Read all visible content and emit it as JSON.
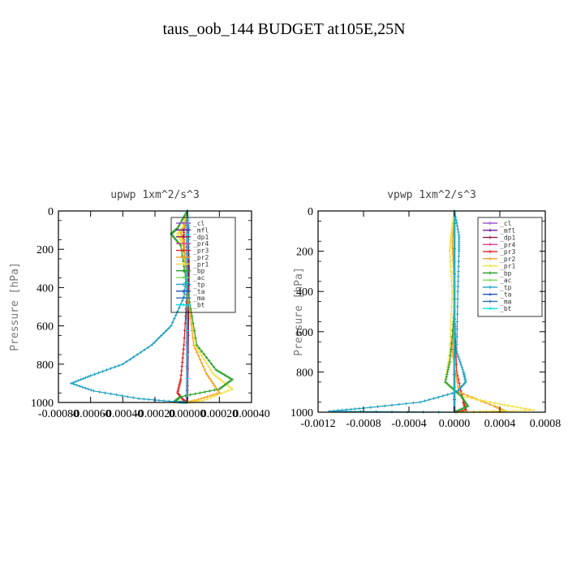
{
  "figure": {
    "title": "taus_oob_144  BUDGET at105E,25N"
  },
  "chart_data": [
    {
      "type": "line",
      "title": "upwp   1xm^2/s^3",
      "ylabel": "Pressure [hPa]",
      "xlabel": "",
      "xlim": [
        -0.0008,
        0.0004
      ],
      "ylim": [
        1000,
        0
      ],
      "y_inverted": true,
      "x_ticks": [
        -0.0008,
        -0.0006,
        -0.0004,
        -0.0002,
        0.0,
        0.0002,
        0.0004
      ],
      "x_tick_labels": [
        "-0.00080",
        "-0.00060",
        "-0.00040",
        "-0.00020",
        "0.00000",
        "0.00020",
        "0.00040"
      ],
      "y_ticks": [
        0,
        200,
        400,
        600,
        800,
        1000
      ],
      "y_tick_labels": [
        "0",
        "200",
        "400",
        "600",
        "800",
        "1000"
      ],
      "legend_position": "top-right",
      "series": [
        {
          "name": "_cl",
          "color": "#9b59d0",
          "points": [
            [
              0,
              0
            ],
            [
              0,
              500
            ],
            [
              0,
              1000
            ]
          ]
        },
        {
          "name": "_mfl",
          "color": "#6a1b9a",
          "points": [
            [
              0,
              0
            ],
            [
              0,
              500
            ],
            [
              0,
              1000
            ]
          ]
        },
        {
          "name": "_dp1",
          "color": "#8b1a4a",
          "points": [
            [
              0,
              0
            ],
            [
              1e-05,
              300
            ],
            [
              0,
              1000
            ]
          ]
        },
        {
          "name": "_pr4",
          "color": "#e0408a",
          "points": [
            [
              0,
              0
            ],
            [
              0,
              1000
            ]
          ]
        },
        {
          "name": "_pr3",
          "color": "#e02020",
          "points": [
            [
              0,
              0
            ],
            [
              -2e-05,
              100
            ],
            [
              -2e-05,
              200
            ],
            [
              0,
              400
            ],
            [
              -2e-05,
              700
            ],
            [
              -4e-05,
              880
            ],
            [
              -6e-05,
              950
            ],
            [
              -2e-05,
              990
            ],
            [
              0,
              1000
            ]
          ]
        },
        {
          "name": "_pr2",
          "color": "#f4a020",
          "points": [
            [
              0,
              0
            ],
            [
              -2e-05,
              80
            ],
            [
              -4e-05,
              110
            ],
            [
              -2e-05,
              160
            ],
            [
              0,
              400
            ],
            [
              4e-05,
              700
            ],
            [
              0.00012,
              850
            ],
            [
              0.0002,
              950
            ],
            [
              5e-05,
              990
            ],
            [
              0,
              1000
            ]
          ]
        },
        {
          "name": "_pr1",
          "color": "#f0e040",
          "points": [
            [
              0,
              0
            ],
            [
              -3e-05,
              90
            ],
            [
              -6e-05,
              120
            ],
            [
              -3e-05,
              170
            ],
            [
              0,
              400
            ],
            [
              5e-05,
              700
            ],
            [
              0.00016,
              850
            ],
            [
              0.00028,
              930
            ],
            [
              0.0001,
              990
            ],
            [
              0,
              1000
            ]
          ]
        },
        {
          "name": "_bp",
          "color": "#2ca02c",
          "points": [
            [
              0,
              0
            ],
            [
              -6e-05,
              90
            ],
            [
              -0.0001,
              120
            ],
            [
              -4e-05,
              180
            ],
            [
              0,
              400
            ],
            [
              6e-05,
              700
            ],
            [
              0.00018,
              830
            ],
            [
              0.00028,
              880
            ],
            [
              0.0002,
              930
            ],
            [
              -4e-05,
              970
            ],
            [
              -8e-05,
              995
            ],
            [
              0,
              1000
            ]
          ]
        },
        {
          "name": "_ac",
          "color": "#7ed957",
          "points": [
            [
              0,
              0
            ],
            [
              0,
              1000
            ]
          ]
        },
        {
          "name": "_tp",
          "color": "#1f9fbf",
          "points": [
            [
              0,
              0
            ],
            [
              1e-05,
              100
            ],
            [
              0,
              300
            ],
            [
              -2e-05,
              450
            ],
            [
              -0.0001,
              600
            ],
            [
              -0.00022,
              700
            ],
            [
              -0.0004,
              800
            ],
            [
              -0.0006,
              860
            ],
            [
              -0.00072,
              900
            ],
            [
              -0.00058,
              940
            ],
            [
              -0.0003,
              980
            ],
            [
              -5e-05,
              998
            ],
            [
              0,
              1000
            ]
          ]
        },
        {
          "name": "_ta",
          "color": "#1f4fbf",
          "points": [
            [
              0,
              0
            ],
            [
              0,
              1000
            ]
          ]
        },
        {
          "name": "_ma",
          "color": "#2a6fb5",
          "points": [
            [
              0,
              0
            ],
            [
              0,
              1000
            ]
          ]
        },
        {
          "name": "_bt",
          "color": "#00e0e0",
          "points": [
            [
              0,
              0
            ],
            [
              0,
              1000
            ]
          ]
        }
      ]
    },
    {
      "type": "line",
      "title": "vpwp   1xm^2/s^3",
      "ylabel": "Pressure [hPa]",
      "xlabel": "",
      "xlim": [
        -0.0012,
        0.0008
      ],
      "ylim": [
        1000,
        0
      ],
      "y_inverted": true,
      "x_ticks": [
        -0.0012,
        -0.0008,
        -0.0004,
        0.0,
        0.0004,
        0.0008
      ],
      "x_tick_labels": [
        "-0.0012",
        "-0.0008",
        "-0.0004",
        "0.0000",
        "0.0004",
        "0.0008"
      ],
      "y_ticks": [
        0,
        200,
        400,
        600,
        800,
        1000
      ],
      "y_tick_labels": [
        "0",
        "200",
        "400",
        "600",
        "800",
        "1000"
      ],
      "legend_position": "top-right",
      "series": [
        {
          "name": "_cl",
          "color": "#9b59d0",
          "points": [
            [
              0,
              0
            ],
            [
              0,
              500
            ],
            [
              0,
              1000
            ]
          ]
        },
        {
          "name": "_mfl",
          "color": "#6a1b9a",
          "points": [
            [
              0,
              0
            ],
            [
              0,
              500
            ],
            [
              0,
              1000
            ]
          ]
        },
        {
          "name": "_dp1",
          "color": "#8b1a4a",
          "points": [
            [
              0,
              0
            ],
            [
              0,
              1000
            ]
          ]
        },
        {
          "name": "_pr4",
          "color": "#e0408a",
          "points": [
            [
              0,
              0
            ],
            [
              0,
              1000
            ]
          ]
        },
        {
          "name": "_pr3",
          "color": "#e02020",
          "points": [
            [
              0,
              0
            ],
            [
              0,
              500
            ],
            [
              2e-05,
              800
            ],
            [
              8e-05,
              950
            ],
            [
              0.0001,
              990
            ],
            [
              0,
              1000
            ]
          ]
        },
        {
          "name": "_pr2",
          "color": "#f4a020",
          "points": [
            [
              0,
              0
            ],
            [
              -2e-05,
              150
            ],
            [
              0,
              400
            ],
            [
              -2e-05,
              700
            ],
            [
              4e-05,
              900
            ],
            [
              0.00035,
              970
            ],
            [
              0.00045,
              995
            ],
            [
              0,
              1000
            ]
          ]
        },
        {
          "name": "_pr1",
          "color": "#f0e040",
          "points": [
            [
              0,
              0
            ],
            [
              -3e-05,
              120
            ],
            [
              -4e-05,
              200
            ],
            [
              -2e-05,
              400
            ],
            [
              -4e-05,
              700
            ],
            [
              -8e-05,
              850
            ],
            [
              6e-05,
              920
            ],
            [
              0.0004,
              960
            ],
            [
              0.0007,
              990
            ],
            [
              0,
              1000
            ]
          ]
        },
        {
          "name": "_bp",
          "color": "#2ca02c",
          "points": [
            [
              0,
              0
            ],
            [
              0,
              500
            ],
            [
              -4e-05,
              750
            ],
            [
              -8e-05,
              850
            ],
            [
              6e-05,
              920
            ],
            [
              0.00012,
              970
            ],
            [
              0,
              1000
            ]
          ]
        },
        {
          "name": "_ac",
          "color": "#7ed957",
          "points": [
            [
              0,
              0
            ],
            [
              0,
              1000
            ]
          ]
        },
        {
          "name": "_tp",
          "color": "#1f9fbf",
          "points": [
            [
              0,
              0
            ],
            [
              4e-05,
              120
            ],
            [
              4e-05,
              200
            ],
            [
              3e-05,
              400
            ],
            [
              2e-05,
              700
            ],
            [
              8e-05,
              800
            ],
            [
              0.0001,
              850
            ],
            [
              2e-05,
              900
            ],
            [
              -0.0003,
              950
            ],
            [
              -0.0008,
              980
            ],
            [
              -0.0011,
              995
            ],
            [
              0,
              1000
            ]
          ]
        },
        {
          "name": "_ta",
          "color": "#1f4fbf",
          "points": [
            [
              0,
              0
            ],
            [
              0,
              1000
            ]
          ]
        },
        {
          "name": "_ma",
          "color": "#2a6fb5",
          "points": [
            [
              0,
              0
            ],
            [
              0,
              1000
            ]
          ]
        },
        {
          "name": "_bt",
          "color": "#00e0e0",
          "points": [
            [
              0,
              0
            ],
            [
              0,
              1000
            ]
          ]
        }
      ]
    }
  ]
}
